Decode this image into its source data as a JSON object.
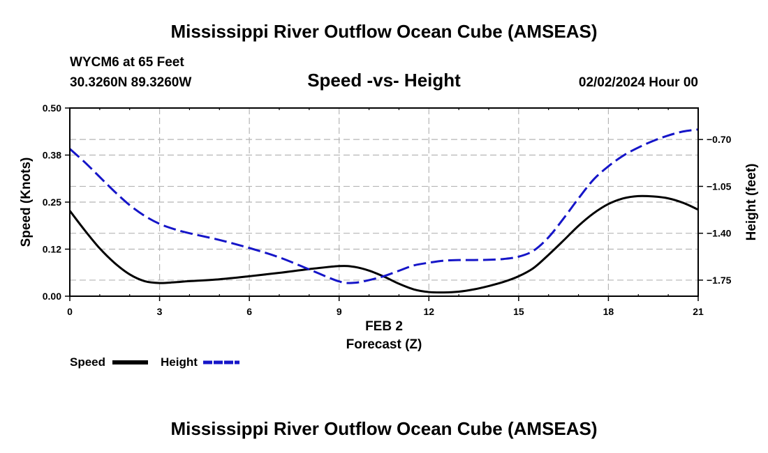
{
  "header": {
    "title": "Mississippi River Outflow Ocean Cube (AMSEAS)",
    "station": "WYCM6 at 65 Feet",
    "coords": "30.3260N  89.3260W",
    "date": "02/02/2024 Hour 00",
    "footer_title": "Mississippi River Outflow Ocean Cube (AMSEAS)"
  },
  "chart_data": {
    "type": "line",
    "title": "Speed -vs- Height",
    "xlabel": "Forecast (Z)",
    "xdate_label": "FEB 2",
    "ylabel": "Speed (Knots)",
    "y2label": "Height (feet)",
    "xlim": [
      0,
      21
    ],
    "ylim": [
      0,
      0.5
    ],
    "y2lim": [
      -1.87,
      -0.465
    ],
    "x_ticks": [
      "0",
      "3",
      "6",
      "9",
      "12",
      "15",
      "18",
      "21"
    ],
    "y_ticks": [
      "0.00",
      "0.12",
      "0.25",
      "0.38",
      "0.50"
    ],
    "y2_ticks": [
      "-0.70",
      "-1.05",
      "-1.40",
      "-1.75"
    ],
    "grid": true,
    "series": [
      {
        "name": "Speed",
        "axis": "left",
        "color": "#000000",
        "style": "solid",
        "x": [
          0,
          0.5,
          1,
          1.5,
          2,
          2.5,
          3,
          3.5,
          4,
          5,
          6,
          7,
          8,
          9,
          9.5,
          10,
          10.5,
          11,
          11.5,
          12,
          12.5,
          13,
          13.5,
          14,
          14.5,
          15,
          15.5,
          16,
          16.5,
          17,
          17.5,
          18,
          18.5,
          19,
          19.5,
          20,
          20.5,
          21
        ],
        "values": [
          0.227,
          0.175,
          0.127,
          0.088,
          0.058,
          0.04,
          0.035,
          0.037,
          0.04,
          0.045,
          0.053,
          0.062,
          0.072,
          0.08,
          0.078,
          0.068,
          0.052,
          0.033,
          0.018,
          0.011,
          0.01,
          0.012,
          0.018,
          0.027,
          0.038,
          0.053,
          0.075,
          0.11,
          0.148,
          0.187,
          0.22,
          0.245,
          0.26,
          0.266,
          0.265,
          0.26,
          0.248,
          0.23
        ]
      },
      {
        "name": "Height",
        "axis": "right",
        "color": "#1515c8",
        "style": "dashed",
        "x": [
          0,
          0.5,
          1,
          1.5,
          2,
          2.5,
          3,
          3.5,
          4,
          5,
          6,
          7,
          8,
          9,
          9.5,
          10,
          10.5,
          11,
          11.5,
          12,
          12.5,
          13,
          13.5,
          14,
          14.5,
          15,
          15.5,
          16,
          16.5,
          17,
          17.5,
          18,
          18.5,
          19,
          19.5,
          20,
          20.5,
          21
        ],
        "values": [
          -0.77,
          -0.87,
          -0.98,
          -1.09,
          -1.19,
          -1.27,
          -1.33,
          -1.37,
          -1.4,
          -1.45,
          -1.51,
          -1.58,
          -1.67,
          -1.76,
          -1.77,
          -1.75,
          -1.72,
          -1.68,
          -1.64,
          -1.62,
          -1.605,
          -1.6,
          -1.6,
          -1.598,
          -1.592,
          -1.575,
          -1.53,
          -1.43,
          -1.29,
          -1.14,
          -1.0,
          -0.9,
          -0.82,
          -0.76,
          -0.71,
          -0.67,
          -0.64,
          -0.625
        ]
      }
    ],
    "legend": [
      {
        "label": "Speed",
        "color": "#000000",
        "style": "solid"
      },
      {
        "label": "Height",
        "color": "#1515c8",
        "style": "dashed"
      }
    ],
    "legend_position": "bottom-left"
  }
}
